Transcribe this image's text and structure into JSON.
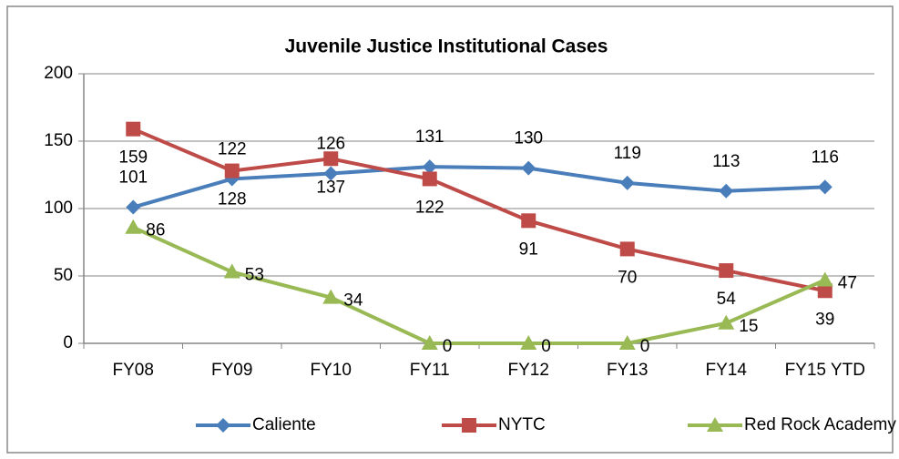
{
  "chart_data": {
    "type": "line",
    "title": "Juvenile Justice Institutional Cases",
    "categories": [
      "FY08",
      "FY09",
      "FY10",
      "FY11",
      "FY12",
      "FY13",
      "FY14",
      "FY15 YTD"
    ],
    "series": [
      {
        "name": "Caliente",
        "color": "#4a7ebb",
        "marker": "diamond",
        "values": [
          101,
          122,
          126,
          131,
          130,
          119,
          113,
          116
        ]
      },
      {
        "name": "NYTC",
        "color": "#be4b48",
        "marker": "square",
        "values": [
          159,
          128,
          137,
          122,
          91,
          70,
          54,
          39
        ]
      },
      {
        "name": "Red Rock Academy",
        "color": "#98b954",
        "marker": "triangle",
        "values": [
          86,
          53,
          34,
          0,
          0,
          0,
          15,
          47
        ]
      }
    ],
    "ylim": [
      0,
      200
    ],
    "yticks": [
      0,
      50,
      100,
      150,
      200
    ],
    "grid": true,
    "legend": "bottom"
  }
}
